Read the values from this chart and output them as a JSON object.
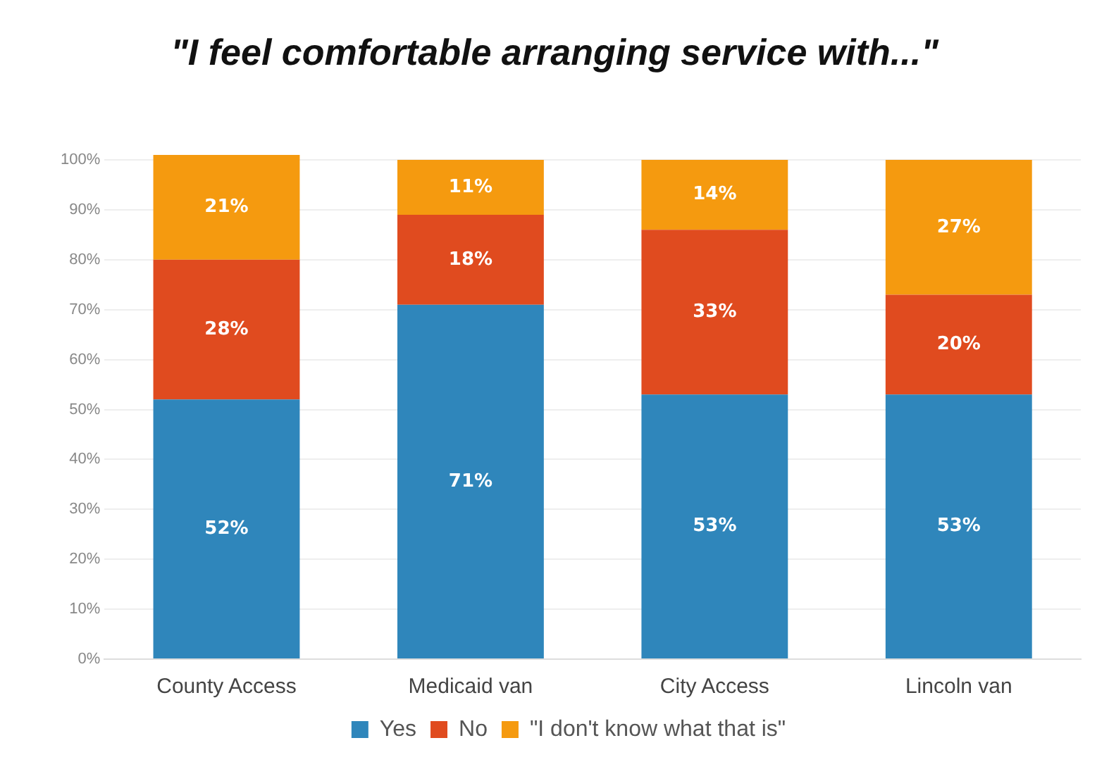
{
  "chart_data": {
    "type": "bar",
    "stacked": true,
    "title": "\"I feel comfortable arranging service with...\"",
    "categories": [
      "County Access",
      "Medicaid van",
      "City Access",
      "Lincoln van"
    ],
    "series": [
      {
        "name": "Yes",
        "color": "#2f86bb",
        "values": [
          52,
          71,
          53,
          53
        ],
        "value_labels": [
          "52%",
          "71%",
          "53%",
          "53%"
        ]
      },
      {
        "name": "No",
        "color": "#e04b1f",
        "values": [
          28,
          18,
          33,
          20
        ],
        "value_labels": [
          "28%",
          "18%",
          "33%",
          "20%"
        ]
      },
      {
        "name": "\"I don't know what that is\"",
        "color": "#f59a0f",
        "values": [
          21,
          11,
          14,
          27
        ],
        "value_labels": [
          "21%",
          "11%",
          "14%",
          "27%"
        ]
      }
    ],
    "ylim": [
      0,
      101
    ],
    "yticks": [
      {
        "value": 0,
        "label": "0%"
      },
      {
        "value": 10,
        "label": "10%"
      },
      {
        "value": 20,
        "label": "20%"
      },
      {
        "value": 30,
        "label": "30%"
      },
      {
        "value": 40,
        "label": "40%"
      },
      {
        "value": 50,
        "label": "50%"
      },
      {
        "value": 60,
        "label": "60%"
      },
      {
        "value": 70,
        "label": "70%"
      },
      {
        "value": 80,
        "label": "80%"
      },
      {
        "value": 90,
        "label": "90%"
      },
      {
        "value": 100,
        "label": "100%"
      }
    ],
    "grid": "y",
    "legend": "bottom"
  }
}
